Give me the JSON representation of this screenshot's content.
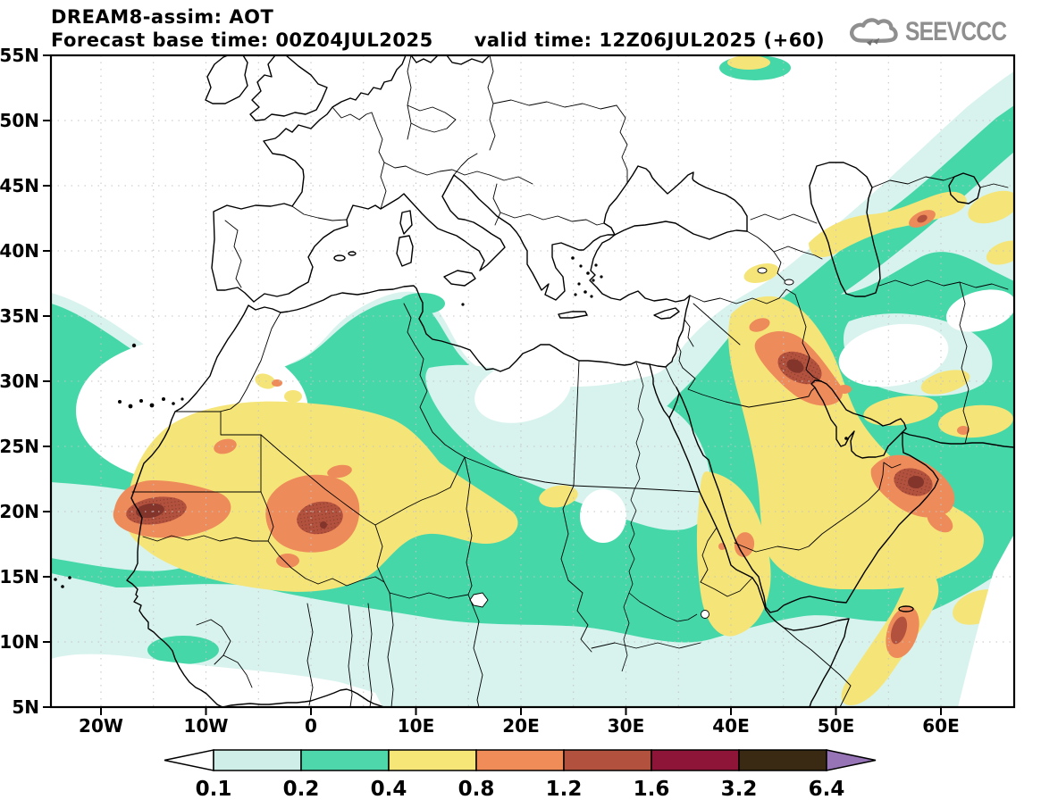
{
  "header": {
    "title": "DREAM8-assim: AOT",
    "base_time": "Forecast base time: 00Z04JUL2025",
    "valid_time": "valid time: 12Z06JUL2025 (+60)"
  },
  "logo": {
    "text": "SEEVCCC"
  },
  "map": {
    "lat_tick_labels": [
      "55N",
      "50N",
      "45N",
      "40N",
      "35N",
      "30N",
      "25N",
      "20N",
      "15N",
      "10N",
      "5N"
    ],
    "lon_tick_labels": [
      "20W",
      "10W",
      "0",
      "10E",
      "20E",
      "30E",
      "40E",
      "50E",
      "60E"
    ]
  },
  "colorbar": {
    "tick_labels": [
      "0.1",
      "0.2",
      "0.4",
      "0.8",
      "1.2",
      "1.6",
      "3.2",
      "6.4"
    ],
    "segment_colors": [
      "#cfeee8",
      "#4dd7ab",
      "#f6e577",
      "#ef8c58",
      "#b2513d",
      "#8e1538",
      "#3a2a13"
    ],
    "below_min_color": "#ffffff",
    "above_max_color": "#9674b6"
  }
}
